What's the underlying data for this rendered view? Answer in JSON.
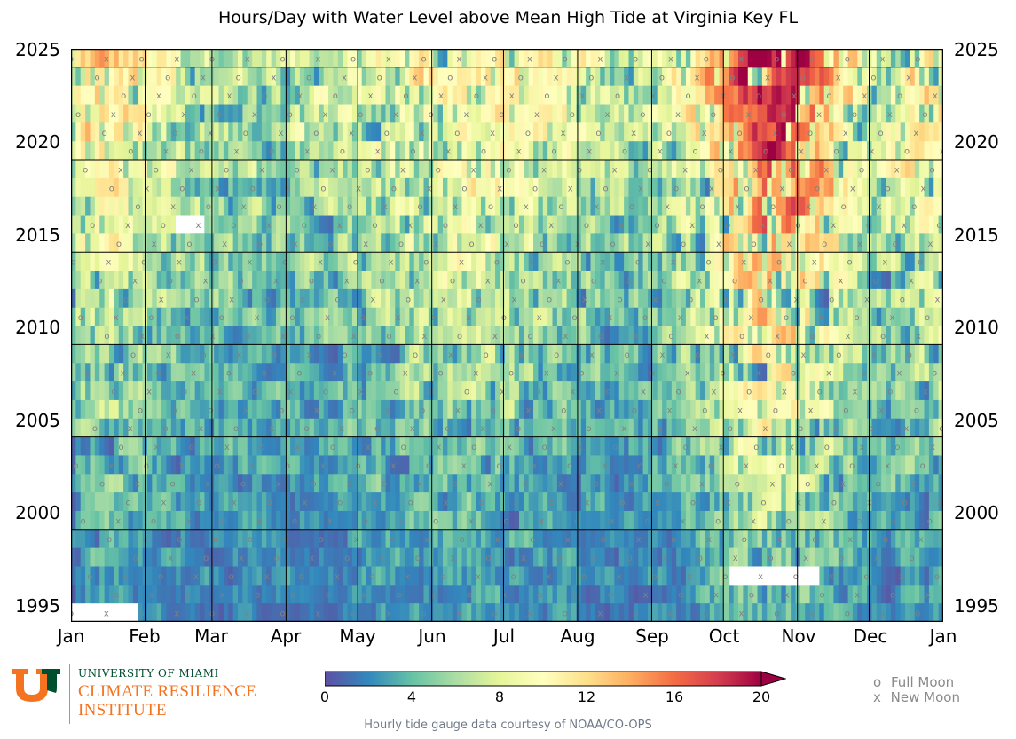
{
  "chart_data": {
    "type": "heatmap",
    "title": "Hours/Day with Water Level above Mean High Tide at Virginia Key FL",
    "x_tick_labels": [
      "Jan",
      "Feb",
      "Mar",
      "Apr",
      "May",
      "Jun",
      "Jul",
      "Aug",
      "Sep",
      "Oct",
      "Nov",
      "Dec",
      "Jan"
    ],
    "y_tick_labels": [
      "2025",
      "2020",
      "2015",
      "2010",
      "2005",
      "2000",
      "1995"
    ],
    "y_range": [
      1994.5,
      2025.5
    ],
    "colorbar": {
      "min": 0,
      "max": 20,
      "extend": "max",
      "tick_labels": [
        "0",
        "4",
        "8",
        "12",
        "16",
        "20"
      ],
      "colormap": "Spectral_r",
      "colors": [
        "#5e4fa2",
        "#3288bd",
        "#66c2a5",
        "#abdda4",
        "#e6f598",
        "#ffffbf",
        "#fee08b",
        "#fdae61",
        "#f46d43",
        "#d53e4f",
        "#9e0142"
      ]
    },
    "legend": [
      {
        "marker": "o",
        "label": "Full Moon"
      },
      {
        "marker": "x",
        "label": "New Moon"
      }
    ],
    "grid": true
  },
  "logo": {
    "university": "UNIVERSITY OF MIAMI",
    "line1": "CLIMATE RESILIENCE",
    "line2": "INSTITUTE"
  },
  "credit": "Hourly tide gauge data courtesy of NOAA/CO-OPS"
}
